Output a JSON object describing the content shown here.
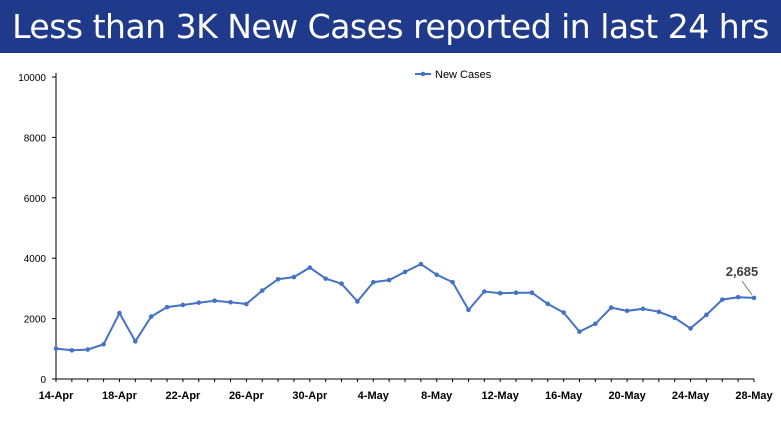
{
  "header": {
    "title": "Less than 3K New Cases reported in last 24 hrs",
    "background_color": "#1f3a8a",
    "text_color": "#ffffff"
  },
  "chart_data": {
    "type": "line",
    "title": "",
    "xlabel": "",
    "ylabel": "",
    "ylim": [
      0,
      10000
    ],
    "yticks": [
      0,
      2000,
      4000,
      6000,
      8000,
      10000
    ],
    "x_tick_labels": [
      "14-Apr",
      "18-Apr",
      "22-Apr",
      "26-Apr",
      "30-Apr",
      "4-May",
      "8-May",
      "12-May",
      "16-May",
      "20-May",
      "24-May",
      "28-May"
    ],
    "x_tick_every": 4,
    "grid": false,
    "legend_position": "top-center",
    "series": [
      {
        "name": "New Cases",
        "color": "#4472c4",
        "marker": "circle",
        "values": [
          1007,
          949,
          975,
          1150,
          2183,
          1247,
          2067,
          2380,
          2451,
          2527,
          2593,
          2541,
          2483,
          2927,
          3303,
          3377,
          3688,
          3324,
          3157,
          2568,
          3205,
          3275,
          3545,
          3805,
          3451,
          3207,
          2288,
          2897,
          2841,
          2858,
          2858,
          2487,
          2202,
          1569,
          1829,
          2364,
          2259,
          2323,
          2226,
          2022,
          1675,
          2124,
          2628,
          2710,
          2685
        ]
      }
    ],
    "annotations": [
      {
        "text": "2,685",
        "index": 44
      }
    ]
  }
}
